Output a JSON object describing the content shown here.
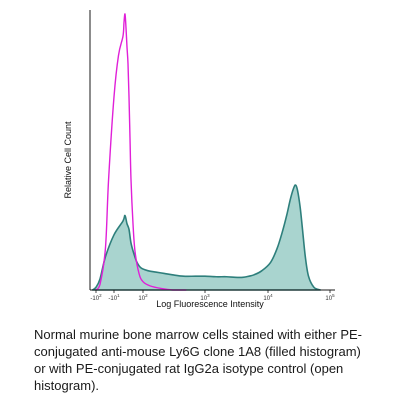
{
  "chart_data": {
    "type": "area",
    "title": "",
    "xlabel": "Log Fluorescence Intensity",
    "ylabel": "Relative Cell Count",
    "x_scale": "logicle",
    "tick_labels": [
      "-10²",
      "-10¹",
      "10²",
      "10³",
      "10⁴",
      "10⁵"
    ],
    "tick_exponents": [
      "2",
      "1",
      "2",
      "3",
      "4",
      "5"
    ],
    "tick_bases": [
      "-10",
      "-10",
      "10",
      "10",
      "10",
      "10"
    ],
    "tick_values": [
      -100,
      -10,
      100,
      1000,
      10000,
      100000
    ],
    "ylim": [
      0,
      100
    ],
    "grid": false,
    "legend": "none",
    "series": [
      {
        "style": "filled",
        "color": "#2e7f7c",
        "fill": "#a9d4cf",
        "x": [
          -150,
          -100,
          -60,
          -30,
          -10,
          0,
          10,
          20,
          30,
          40,
          55,
          70,
          90,
          120,
          160,
          220,
          300,
          450,
          700,
          1000,
          1500,
          2200,
          3000,
          4000,
          5000,
          6000,
          8000,
          11000,
          14000,
          17000,
          20000,
          23000,
          26000,
          28000,
          30000,
          33000,
          36000,
          40000,
          45000,
          55000,
          70000
        ],
        "y": [
          0,
          1,
          4,
          12,
          20,
          25,
          27,
          24,
          22,
          17,
          13,
          10,
          8,
          7,
          6.5,
          6,
          5.5,
          5,
          5,
          5,
          4.8,
          4.8,
          4.6,
          4.6,
          5,
          5.5,
          7,
          10,
          15,
          21,
          27,
          33,
          37,
          38,
          36,
          30,
          22,
          12,
          5,
          1,
          0
        ]
      },
      {
        "style": "open",
        "color": "#e020d8",
        "x": [
          -100,
          -60,
          -30,
          -20,
          -10,
          -5,
          0,
          5,
          10,
          15,
          20,
          25,
          30,
          35,
          40,
          50,
          60,
          80,
          100,
          130,
          200,
          300,
          500
        ],
        "y": [
          0,
          2,
          15,
          40,
          70,
          85,
          92,
          97,
          100,
          95,
          88,
          82,
          70,
          55,
          40,
          24,
          14,
          6,
          3,
          1.5,
          0.5,
          0,
          0
        ]
      }
    ]
  },
  "caption": "Normal murine bone marrow cells stained with either PE-conjugated anti-mouse Ly6G clone 1A8 (filled histogram) or with PE-conjugated rat IgG2a isotype control (open histogram)."
}
